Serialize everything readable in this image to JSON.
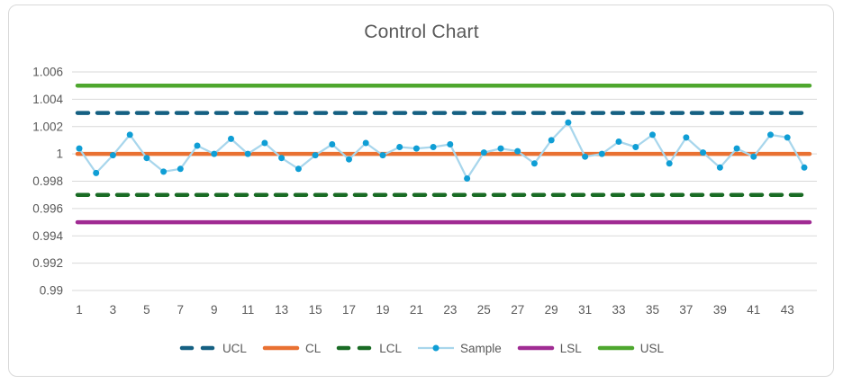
{
  "title": "Control Chart",
  "chart_data": {
    "type": "line",
    "title": "Control Chart",
    "xlabel": "",
    "ylabel": "",
    "ylim": [
      0.99,
      1.006
    ],
    "grid": "horizontal",
    "x": [
      1,
      2,
      3,
      4,
      5,
      6,
      7,
      8,
      9,
      10,
      11,
      12,
      13,
      14,
      15,
      16,
      17,
      18,
      19,
      20,
      21,
      22,
      23,
      24,
      25,
      26,
      27,
      28,
      29,
      30,
      31,
      32,
      33,
      34,
      35,
      36,
      37,
      38,
      39,
      40,
      41,
      42,
      43,
      44
    ],
    "series": [
      {
        "name": "Sample",
        "marker_color": "#0F9ED5",
        "line_color": "#A8D6EC",
        "values": [
          1.0004,
          0.9986,
          0.9999,
          1.0014,
          0.9997,
          0.9987,
          0.9989,
          1.0006,
          1.0,
          1.0011,
          1.0,
          1.0008,
          0.9997,
          0.9989,
          0.9999,
          1.0007,
          0.9996,
          1.0008,
          0.9999,
          1.0005,
          1.0004,
          1.0005,
          1.0007,
          0.9982,
          1.0001,
          1.0004,
          1.0002,
          0.9993,
          1.001,
          1.0023,
          0.9998,
          1.0,
          1.0009,
          1.0005,
          1.0014,
          0.9993,
          1.0012,
          1.0001,
          0.999,
          1.0004,
          0.9998,
          1.0014,
          1.0012,
          0.999
        ]
      }
    ],
    "reference_lines": [
      {
        "name": "UCL",
        "value": 1.003,
        "color": "#156082",
        "style": "dashed"
      },
      {
        "name": "CL",
        "value": 1.0,
        "color": "#E97132",
        "style": "solid"
      },
      {
        "name": "LCL",
        "value": 0.997,
        "color": "#196B24",
        "style": "dashed"
      },
      {
        "name": "LSL",
        "value": 0.995,
        "color": "#A02B93",
        "style": "solid"
      },
      {
        "name": "USL",
        "value": 1.005,
        "color": "#4EA72E",
        "style": "solid"
      }
    ],
    "y_ticks": [
      {
        "value": 1.006,
        "label": "1.006"
      },
      {
        "value": 1.004,
        "label": "1.004"
      },
      {
        "value": 1.002,
        "label": "1.002"
      },
      {
        "value": 1.0,
        "label": "1"
      },
      {
        "value": 0.998,
        "label": "0.998"
      },
      {
        "value": 0.996,
        "label": "0.996"
      },
      {
        "value": 0.994,
        "label": "0.994"
      },
      {
        "value": 0.992,
        "label": "0.992"
      },
      {
        "value": 0.99,
        "label": "0.99"
      }
    ],
    "x_tick_labels": [
      "1",
      "3",
      "5",
      "7",
      "9",
      "11",
      "13",
      "15",
      "17",
      "19",
      "21",
      "23",
      "25",
      "27",
      "29",
      "31",
      "33",
      "35",
      "37",
      "39",
      "41",
      "43"
    ],
    "legend": {
      "position": "bottom",
      "entries": [
        {
          "label": "UCL",
          "color": "#156082",
          "style": "dashed"
        },
        {
          "label": "CL",
          "color": "#E97132",
          "style": "solid"
        },
        {
          "label": "LCL",
          "color": "#196B24",
          "style": "dashed"
        },
        {
          "label": "Sample",
          "color": "#0F9ED5",
          "line_color": "#A8D6EC",
          "style": "line-marker"
        },
        {
          "label": "LSL",
          "color": "#A02B93",
          "style": "solid"
        },
        {
          "label": "USL",
          "color": "#4EA72E",
          "style": "solid"
        }
      ]
    },
    "style": {
      "gridline_color": "#D9D9D9",
      "axis_text_color": "#595959",
      "title_color": "#595959",
      "card_border_color": "#D9D9D9"
    }
  }
}
